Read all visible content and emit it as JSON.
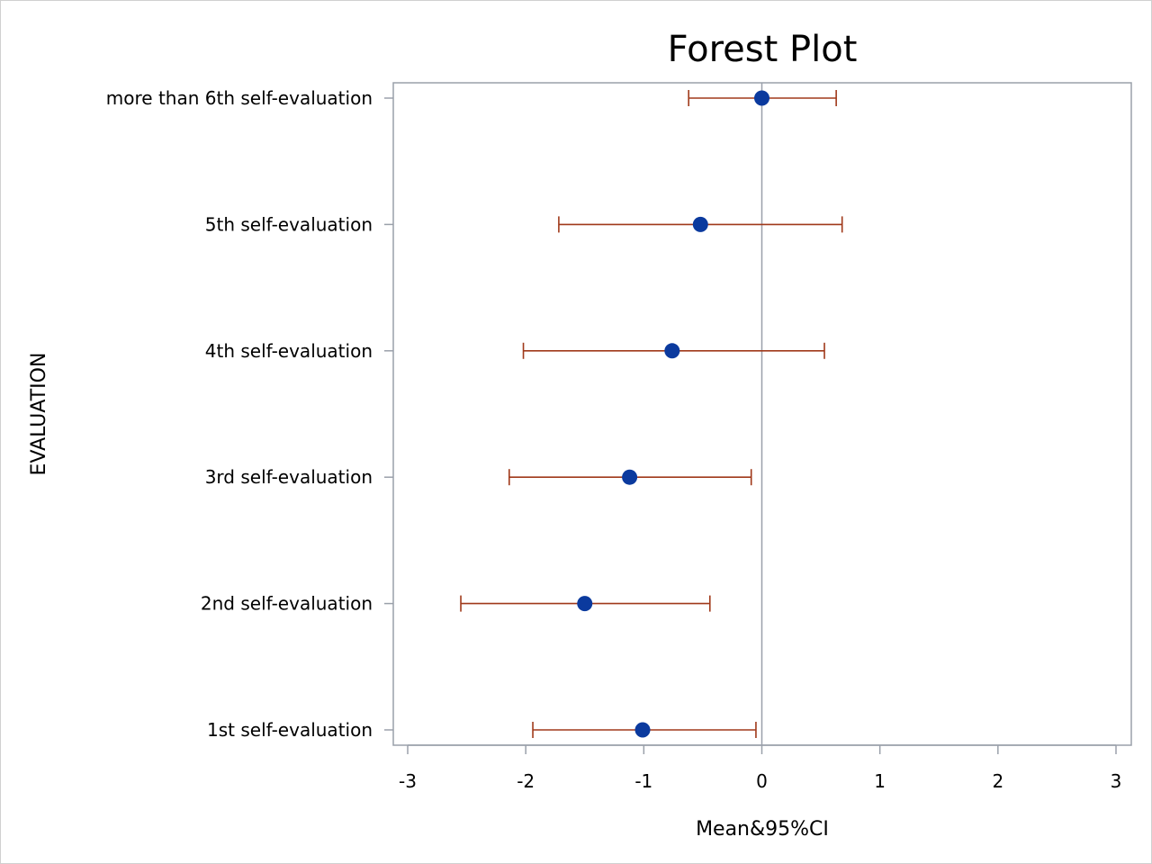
{
  "chart_data": {
    "type": "forest",
    "title": "Forest Plot",
    "xlabel": "Mean&95%CI",
    "ylabel": "EVALUATION",
    "xlim": [
      -3,
      3
    ],
    "xticks": [
      -3,
      -2,
      -1,
      0,
      1,
      2,
      3
    ],
    "reference_line": 0,
    "grid": false,
    "legend": "none",
    "rows": [
      {
        "label": "more than 6th self-evaluation",
        "mean": 0.0,
        "lower": -0.62,
        "upper": 0.63
      },
      {
        "label": "5th self-evaluation",
        "mean": -0.52,
        "lower": -1.72,
        "upper": 0.68
      },
      {
        "label": "4th self-evaluation",
        "mean": -0.76,
        "lower": -2.02,
        "upper": 0.53
      },
      {
        "label": "3rd self-evaluation",
        "mean": -1.12,
        "lower": -2.14,
        "upper": -0.09
      },
      {
        "label": "2nd self-evaluation",
        "mean": -1.5,
        "lower": -2.55,
        "upper": -0.44
      },
      {
        "label": "1st self-evaluation",
        "mean": -1.01,
        "lower": -1.94,
        "upper": -0.05
      }
    ],
    "colors": {
      "point": "#0b3a9e",
      "ci_line": "#a0391a",
      "reference": "#9aa0aa",
      "frame": "#9aa0aa"
    }
  }
}
